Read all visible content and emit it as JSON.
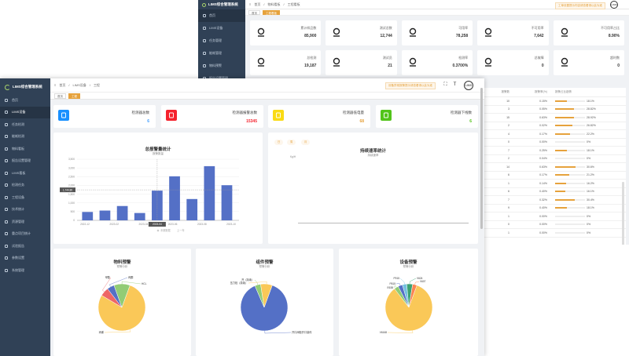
{
  "back": {
    "brand": "LIMS综合管理系统",
    "menu": [
      "首页",
      "LIMS设备",
      "任务管理",
      "能耗管理",
      "物料预警",
      "报告设置管理"
    ],
    "breadcrumb": [
      "首页",
      "物料看板",
      "工程看板"
    ],
    "tags": [
      "首页",
      "工程看板"
    ],
    "notice": "工单设置提示内容请查看请以此为准",
    "user_badge": "LIMS",
    "cards": [
      {
        "icon": "pin-icon",
        "label": "累计样品数",
        "value": "85,900",
        "color": "#333333"
      },
      {
        "icon": "hierarchy-icon",
        "label": "测试总数",
        "value": "12,744",
        "color": "#333333"
      },
      {
        "icon": "route-icon",
        "label": "可用率",
        "value": "78,258",
        "color": "#333333"
      },
      {
        "icon": "route-x-icon",
        "label": "不可用率",
        "value": "7,642",
        "color": "#333333"
      },
      {
        "icon": "monitor-icon",
        "label": "不可用率占比",
        "value": "8.90%",
        "color": "#333333"
      },
      {
        "icon": "pulse-icon",
        "label": "总检测",
        "value": "19,187",
        "color": "#333333"
      },
      {
        "icon": "factory-icon",
        "label": "测试员",
        "value": "21",
        "color": "#333333"
      },
      {
        "icon": "chart-box-icon",
        "label": "检测率",
        "value": "0.3700%",
        "color": "#333333"
      },
      {
        "icon": "tools-icon",
        "label": "总故障",
        "value": "0",
        "color": "#333333"
      },
      {
        "icon": "clock-icon",
        "label": "超时数",
        "value": "0",
        "color": "#333333"
      }
    ],
    "table": {
      "headers": [
        "报警数",
        "报警率(%)",
        "报警占比趋势"
      ],
      "rows": [
        {
          "count": "10",
          "rate": "0.15%",
          "pct": "18.1%",
          "fill": 0.181
        },
        {
          "count": "3",
          "rate": "0.05%",
          "pct": "28.82%",
          "fill": 0.288
        },
        {
          "count": "15",
          "rate": "0.63%",
          "pct": "28.92%",
          "fill": 0.289
        },
        {
          "count": "2",
          "rate": "0.02%",
          "pct": "26.82%",
          "fill": 0.268
        },
        {
          "count": "4",
          "rate": "0.17%",
          "pct": "22.2%",
          "fill": 0.222
        },
        {
          "count": "0",
          "rate": "0.00%",
          "pct": "0%",
          "fill": 0
        },
        {
          "count": "7",
          "rate": "0.25%",
          "pct": "18.1%",
          "fill": 0.181
        },
        {
          "count": "2",
          "rate": "0.04%",
          "pct": "0%",
          "fill": 0
        },
        {
          "count": "14",
          "rate": "0.63%",
          "pct": "30.6%",
          "fill": 0.306
        },
        {
          "count": "6",
          "rate": "0.17%",
          "pct": "21.2%",
          "fill": 0.212
        },
        {
          "count": "1",
          "rate": "0.14%",
          "pct": "16.2%",
          "fill": 0.162
        },
        {
          "count": "6",
          "rate": "0.40%",
          "pct": "16.1%",
          "fill": 0.161
        },
        {
          "count": "7",
          "rate": "0.32%",
          "pct": "30.4%",
          "fill": 0.304
        },
        {
          "count": "9",
          "rate": "0.40%",
          "pct": "18.1%",
          "fill": 0.181
        },
        {
          "count": "1",
          "rate": "0.00%",
          "pct": "0%",
          "fill": 0
        },
        {
          "count": "0",
          "rate": "0.00%",
          "pct": "0%",
          "fill": 0
        },
        {
          "count": "1",
          "rate": "0.00%",
          "pct": "0%",
          "fill": 0
        }
      ]
    }
  },
  "front": {
    "brand": "LIMS综合管理系统",
    "menu": [
      "首页",
      "LIMS设备",
      "任务检测",
      "能耗检测",
      "物料看板",
      "报告设置管理",
      "LIMS看板",
      "检测任务",
      "工程设备",
      "技术统计",
      "资源管理",
      "重点项目统计",
      "试验报告",
      "参数设置",
      "系统管理"
    ],
    "active_menu": 1,
    "breadcrumb": [
      "首页",
      "LIMS设备",
      "工程"
    ],
    "tags": [
      "首页",
      "工程"
    ],
    "notice": "设备异常报警提示请查看请以此为准",
    "user_badge": "LIMS",
    "cards": [
      {
        "icon": "tablet-icon",
        "label": "检测器总数",
        "value": "6",
        "color": "#409eff",
        "bg": "#1890ff"
      },
      {
        "icon": "alarm-icon",
        "label": "检测器报警总数",
        "value": "15345",
        "color": "#f5222d",
        "bg": "#f5222d"
      },
      {
        "icon": "battery-icon",
        "label": "检测器低电量",
        "value": "68",
        "color": "#e6a23c",
        "bg": "#fadb14"
      },
      {
        "icon": "network-icon",
        "label": "检测器下线数",
        "value": "6",
        "color": "#52c41a",
        "bg": "#52c41a"
      }
    ],
    "panel_alarm": {
      "title": "总报警量统计",
      "subtitle": "报警数量",
      "legend": [
        "本期数据",
        "上一年"
      ],
      "tooltip": "1,744.80"
    },
    "panel_rate": {
      "title": "持续速率统计",
      "subtitle": "持续速率",
      "ylabel": "Kg/H",
      "chips": [
        "日",
        "周",
        "月"
      ]
    },
    "pies": [
      {
        "title": "物料预警",
        "subtitle": "预警分析"
      },
      {
        "title": "组件预警",
        "subtitle": "预警分析"
      },
      {
        "title": "设备预警",
        "subtitle": "预警分析"
      }
    ]
  },
  "chart_data": [
    {
      "type": "bar",
      "title": "总报警量统计",
      "categories": [
        "2022-12",
        "2023-01",
        "2023-02",
        "2023-03",
        "2023-04",
        "2023-05",
        "2023-06",
        "2023-07",
        "2023-08"
      ],
      "tick_labels": [
        "2022-12",
        "2023-02",
        "2023-04",
        "2023-06",
        "2023-08",
        "2023-10"
      ],
      "values": [
        480,
        560,
        820,
        420,
        1700,
        2520,
        1220,
        3100,
        2010
      ],
      "ylim": [
        0,
        3500
      ],
      "yticks": [
        0,
        500,
        1000,
        1500,
        2000,
        2500,
        3000,
        3500
      ],
      "color": "#5470c6"
    },
    {
      "type": "pie",
      "title": "物料预警",
      "slices": [
        {
          "label": "丙烯",
          "value": 78,
          "color": "#fac858"
        },
        {
          "label": "甲醇",
          "value": 6,
          "color": "#ee6666"
        },
        {
          "label": "丙酮",
          "value": 5,
          "color": "#5470c6"
        },
        {
          "label": "HCL",
          "value": 11,
          "color": "#91cc75"
        }
      ]
    },
    {
      "type": "pie",
      "title": "组件预警",
      "slices": [
        {
          "label": "开口阀柜开口量传",
          "value": 88,
          "color": "#5470c6"
        },
        {
          "label": "开（持续）",
          "value": 4,
          "color": "#91cc75"
        },
        {
          "label": "压力检（持续）",
          "value": 8,
          "color": "#fac858"
        }
      ]
    },
    {
      "type": "pie",
      "title": "设备预警",
      "slices": [
        {
          "label": "V6168",
          "value": 84,
          "color": "#fac858"
        },
        {
          "label": "E638",
          "value": 3,
          "color": "#91cc75"
        },
        {
          "label": "P815",
          "value": 3,
          "color": "#5470c6"
        },
        {
          "label": "P915",
          "value": 3,
          "color": "#73c0de"
        },
        {
          "label": "V624",
          "value": 4,
          "color": "#3ba272"
        },
        {
          "label": "V607",
          "value": 3,
          "color": "#fc8452"
        }
      ]
    }
  ]
}
